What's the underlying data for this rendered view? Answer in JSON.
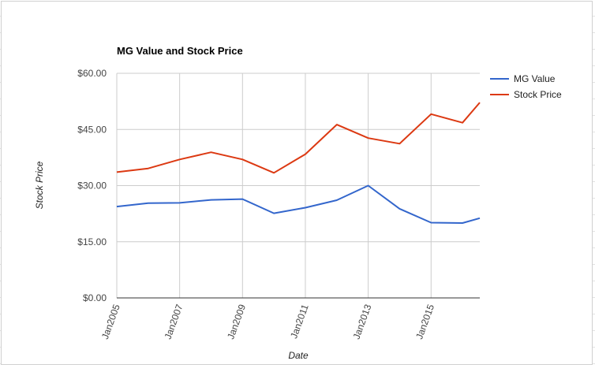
{
  "chart_data": {
    "type": "line",
    "title": "MG Value and Stock Price",
    "xlabel": "Date",
    "ylabel": "Stock Price",
    "x": [
      2005,
      2006,
      2007,
      2008,
      2009,
      2010,
      2011,
      2012,
      2013,
      2014,
      2015,
      2016,
      2016.55
    ],
    "x_tick_values": [
      2005,
      2007,
      2009,
      2011,
      2013,
      2015
    ],
    "x_tick_labels": [
      "Jan2005",
      "Jan2007",
      "Jan2009",
      "Jan2011",
      "Jan2013",
      "Jan2015"
    ],
    "xlim": [
      2005,
      2016.55
    ],
    "ylim": [
      0,
      60
    ],
    "y_ticks": [
      0,
      15,
      30,
      45,
      60
    ],
    "y_tick_labels": [
      "$0.00",
      "$15.00",
      "$30.00",
      "$45.00",
      "$60.00"
    ],
    "grid": true,
    "legend_position": "right",
    "series": [
      {
        "name": "MG Value",
        "color": "#3366cc",
        "values": [
          24.4,
          25.3,
          25.4,
          26.2,
          26.4,
          22.6,
          24.1,
          26.1,
          30.0,
          23.8,
          20.1,
          20.0,
          21.3
        ]
      },
      {
        "name": "Stock Price",
        "color": "#dc3912",
        "values": [
          33.6,
          34.6,
          37.0,
          38.9,
          37.0,
          33.4,
          38.4,
          46.3,
          42.7,
          41.2,
          49.1,
          46.8,
          52.2
        ]
      }
    ]
  }
}
